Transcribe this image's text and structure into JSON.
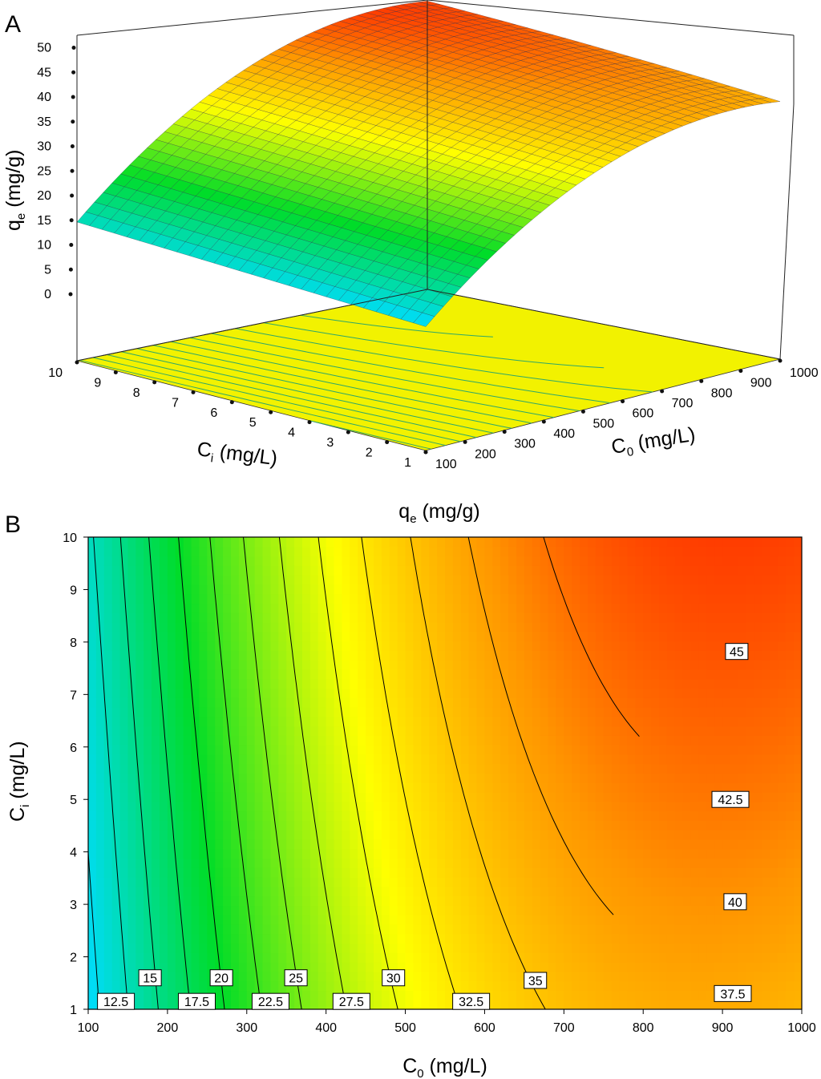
{
  "chart_data": [
    {
      "type": "surface",
      "panel_label": "A",
      "zlabel": "q",
      "zlabel_sub": "e",
      "zlabel_unit": " (mg/g)",
      "xlabel": "C",
      "xlabel_sub": "0",
      "xlabel_unit": " (mg/L)",
      "ylabel": "C",
      "ylabel_sub": "i",
      "ylabel_unit": " (mg/L)",
      "z_ticks": [
        "50",
        "45",
        "40",
        "35",
        "30",
        "25",
        "20",
        "15",
        "10",
        "5",
        "0"
      ],
      "x_ticks": [
        "100",
        "200",
        "300",
        "400",
        "500",
        "600",
        "700",
        "800",
        "900",
        "1000"
      ],
      "y_ticks": [
        "10",
        "9",
        "8",
        "7",
        "6",
        "5",
        "4",
        "3",
        "2",
        "1"
      ],
      "x_range": [
        100,
        1000
      ],
      "y_range": [
        1,
        10
      ],
      "z_range": [
        0,
        50
      ],
      "corner_values": {
        "c0_100_ci_1": 11.5,
        "c0_100_ci_10": 14.5,
        "c0_1000_ci_1": 38.5,
        "c0_1000_ci_10": 46.5
      }
    },
    {
      "type": "contour",
      "panel_label": "B",
      "title": "q",
      "title_sub": "e",
      "title_unit": " (mg/g)",
      "xlabel": "C",
      "xlabel_sub": "0",
      "xlabel_unit": " (mg/L)",
      "ylabel": "C",
      "ylabel_sub": "i",
      "ylabel_unit": " (mg/L)",
      "x_ticks": [
        "100",
        "200",
        "300",
        "400",
        "500",
        "600",
        "700",
        "800",
        "900",
        "1000"
      ],
      "y_ticks": [
        "1",
        "2",
        "3",
        "4",
        "5",
        "6",
        "7",
        "8",
        "9",
        "10"
      ],
      "x_range": [
        100,
        1000
      ],
      "y_range": [
        1,
        10
      ],
      "contour_levels": [
        12.5,
        15,
        17.5,
        20,
        22.5,
        25,
        27.5,
        30,
        32.5,
        35,
        37.5,
        40,
        42.5,
        45
      ],
      "contour_labels": [
        {
          "text": "12.5",
          "x": 135,
          "y": 1.15
        },
        {
          "text": "15",
          "x": 178,
          "y": 1.6
        },
        {
          "text": "17.5",
          "x": 237,
          "y": 1.15
        },
        {
          "text": "20",
          "x": 268,
          "y": 1.6
        },
        {
          "text": "22.5",
          "x": 330,
          "y": 1.15
        },
        {
          "text": "25",
          "x": 362,
          "y": 1.6
        },
        {
          "text": "27.5",
          "x": 432,
          "y": 1.15
        },
        {
          "text": "30",
          "x": 485,
          "y": 1.6
        },
        {
          "text": "32.5",
          "x": 583,
          "y": 1.15
        },
        {
          "text": "35",
          "x": 664,
          "y": 1.55
        },
        {
          "text": "37.5",
          "x": 913,
          "y": 1.3
        },
        {
          "text": "40",
          "x": 916,
          "y": 3.05
        },
        {
          "text": "42.5",
          "x": 910,
          "y": 5.0
        },
        {
          "text": "45",
          "x": 918,
          "y": 7.82
        }
      ]
    }
  ]
}
